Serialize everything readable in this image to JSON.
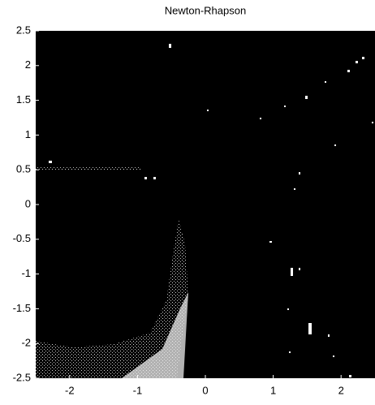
{
  "chart_data": {
    "type": "image",
    "title": "Newton-Rhapson",
    "xlim": [
      -2.5,
      2.5
    ],
    "ylim": [
      -2.5,
      2.5
    ],
    "xticks": [
      -2,
      -1,
      0,
      1,
      2
    ],
    "yticks": [
      2.5,
      2,
      1.5,
      1,
      0.5,
      0,
      -0.5,
      -1,
      -1.5,
      -2,
      -2.5
    ]
  }
}
